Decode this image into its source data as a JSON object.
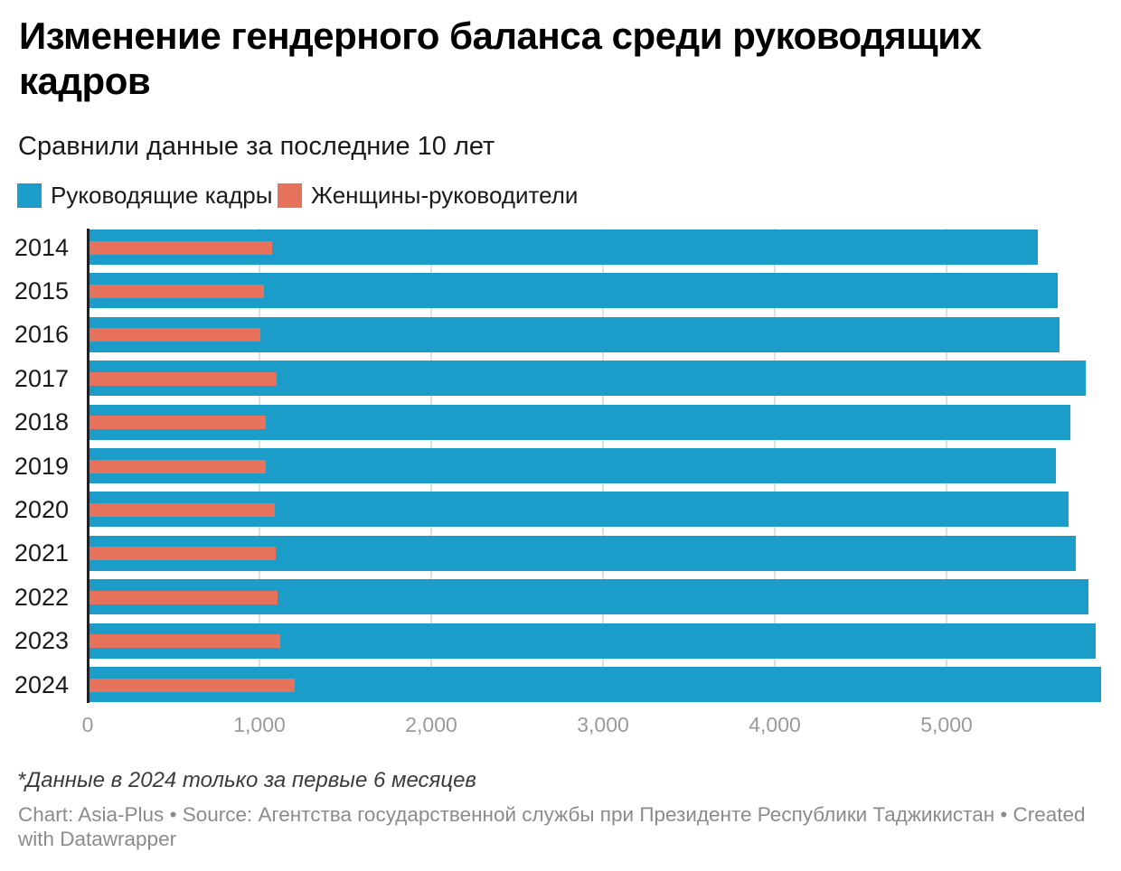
{
  "header": {
    "title": "Изменение гендерного баланса среди руководящих кадров",
    "subtitle": "Сравнили данные за последние 10 лет"
  },
  "legend": [
    {
      "label": "Руководящие кадры",
      "color": "#1c9dc9"
    },
    {
      "label": "Женщины-руководители",
      "color": "#e7725c"
    }
  ],
  "chart_data": {
    "type": "bar",
    "orientation": "horizontal",
    "categories": [
      "2014",
      "2015",
      "2016",
      "2017",
      "2018",
      "2019",
      "2020",
      "2021",
      "2022",
      "2023",
      "2024"
    ],
    "series": [
      {
        "name": "Руководящие кадры",
        "color": "#1c9dc9",
        "values": [
          5530,
          5645,
          5660,
          5810,
          5720,
          5635,
          5710,
          5755,
          5825,
          5870,
          5900
        ]
      },
      {
        "name": "Женщины-руководители",
        "color": "#e7725c",
        "values": [
          1075,
          1025,
          1005,
          1100,
          1035,
          1035,
          1090,
          1095,
          1105,
          1120,
          1205
        ]
      }
    ],
    "xlim": [
      0,
      6000
    ],
    "xticks": [
      {
        "value": 0,
        "label": "0"
      },
      {
        "value": 1000,
        "label": "1,000"
      },
      {
        "value": 2000,
        "label": "2,000"
      },
      {
        "value": 3000,
        "label": "3,000"
      },
      {
        "value": 4000,
        "label": "4,000"
      },
      {
        "value": 5000,
        "label": "5,000"
      }
    ],
    "grid": "vertical",
    "legend_position": "top"
  },
  "footer": {
    "footnote": "*Данные в 2024 только за первые 6 месяцев",
    "byline_lines": [
      "Chart: Asia-Plus • Source: Агентства государственной службы при Президенте Республики Таджикистан • Created",
      "with Datawrapper"
    ]
  }
}
